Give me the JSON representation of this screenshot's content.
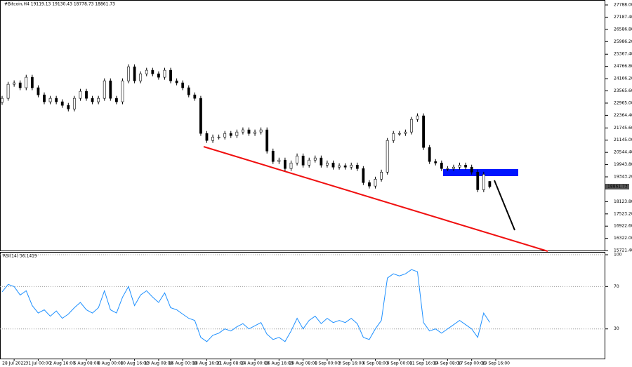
{
  "chart_data": [
    {
      "type": "candlestick",
      "title": "#Bitcoin,H4  19119.13 19130.43 18778.73 18861.73",
      "current_price_label": "18861.73",
      "series": [
        {
          "name": "#Bitcoin,H4",
          "up_color": "#ffffff",
          "down_color": "#000000",
          "values": [
            [
              23000,
              23320,
              22880,
              23200
            ],
            [
              23200,
              24010,
              23080,
              23890
            ],
            [
              23890,
              24080,
              23770,
              23960
            ],
            [
              23960,
              24080,
              23600,
              23720
            ],
            [
              23720,
              24355,
              23600,
              24235
            ],
            [
              24235,
              24355,
              23600,
              23720
            ],
            [
              23720,
              23840,
              23250,
              23370
            ],
            [
              23370,
              23490,
              22910,
              23030
            ],
            [
              23030,
              23320,
              22910,
              23200
            ],
            [
              23200,
              23320,
              22910,
              23030
            ],
            [
              23030,
              23150,
              22735,
              22855
            ],
            [
              22855,
              22975,
              22560,
              22680
            ],
            [
              22680,
              23320,
              22560,
              23200
            ],
            [
              23200,
              23665,
              23080,
              23545
            ],
            [
              23545,
              23665,
              23080,
              23200
            ],
            [
              23200,
              23320,
              22910,
              23030
            ],
            [
              23030,
              23320,
              22910,
              23200
            ],
            [
              23200,
              24180,
              23080,
              24060
            ],
            [
              24060,
              24180,
              23080,
              23200
            ],
            [
              23200,
              23320,
              22910,
              23030
            ],
            [
              23030,
              24180,
              22910,
              24060
            ],
            [
              24060,
              24870,
              23940,
              24750
            ],
            [
              24750,
              24870,
              23940,
              24060
            ],
            [
              24060,
              24525,
              23940,
              24405
            ],
            [
              24405,
              24700,
              24285,
              24580
            ],
            [
              24580,
              24700,
              24285,
              24405
            ],
            [
              24405,
              24525,
              24115,
              24235
            ],
            [
              24235,
              24700,
              24115,
              24580
            ],
            [
              24580,
              24700,
              23940,
              24060
            ],
            [
              24060,
              24180,
              23840,
              23960
            ],
            [
              23960,
              24080,
              23600,
              23720
            ],
            [
              23720,
              23840,
              23250,
              23370
            ],
            [
              23370,
              23490,
              23080,
              23200
            ],
            [
              23200,
              23320,
              21355,
              21475
            ],
            [
              21475,
              21595,
              21010,
              21130
            ],
            [
              21130,
              21420,
              21010,
              21300
            ],
            [
              21300,
              21420,
              21180,
              21300
            ],
            [
              21300,
              21595,
              21180,
              21475
            ],
            [
              21475,
              21595,
              21250,
              21370
            ],
            [
              21370,
              21665,
              21250,
              21545
            ],
            [
              21545,
              21770,
              21425,
              21650
            ],
            [
              21650,
              21770,
              21355,
              21475
            ],
            [
              21475,
              21665,
              21355,
              21545
            ],
            [
              21545,
              21770,
              21425,
              21650
            ],
            [
              21650,
              21770,
              20490,
              20610
            ],
            [
              20610,
              20730,
              19975,
              20095
            ],
            [
              20095,
              20285,
              19975,
              20165
            ],
            [
              20165,
              20285,
              19630,
              19750
            ],
            [
              19750,
              20145,
              19630,
              20025
            ],
            [
              20025,
              20490,
              19905,
              20370
            ],
            [
              20370,
              20490,
              19800,
              19920
            ],
            [
              19920,
              20285,
              19800,
              20165
            ],
            [
              20165,
              20390,
              20045,
              20270
            ],
            [
              20270,
              20390,
              19800,
              19920
            ],
            [
              19920,
              20145,
              19800,
              20025
            ],
            [
              20025,
              20145,
              19700,
              19820
            ],
            [
              19820,
              20010,
              19700,
              19890
            ],
            [
              19890,
              20010,
              19700,
              19820
            ],
            [
              19820,
              20040,
              19700,
              19920
            ],
            [
              19920,
              20040,
              19630,
              19750
            ],
            [
              19750,
              19870,
              18940,
              19060
            ],
            [
              19060,
              19180,
              18770,
              18890
            ],
            [
              18890,
              19350,
              18770,
              19230
            ],
            [
              19230,
              19695,
              19110,
              19575
            ],
            [
              19575,
              21250,
              19455,
              21130
            ],
            [
              21130,
              21595,
              21010,
              21475
            ],
            [
              21475,
              21595,
              21355,
              21475
            ],
            [
              21475,
              21665,
              21355,
              21545
            ],
            [
              21545,
              22285,
              21425,
              22165
            ],
            [
              22165,
              22460,
              22045,
              22340
            ],
            [
              22340,
              22460,
              20665,
              20785
            ],
            [
              20785,
              20905,
              19975,
              20095
            ],
            [
              20095,
              20215,
              19905,
              20025
            ],
            [
              20025,
              20145,
              19630,
              19750
            ],
            [
              19750,
              19870,
              19630,
              19750
            ],
            [
              19750,
              19940,
              19630,
              19820
            ],
            [
              19820,
              20040,
              19700,
              19920
            ],
            [
              19920,
              20040,
              19700,
              19820
            ],
            [
              19820,
              19940,
              19455,
              19575
            ],
            [
              19575,
              19695,
              18590,
              18710
            ],
            [
              18710,
              19590,
              18590,
              19470
            ],
            [
              19119.13,
              19130.43,
              18778.73,
              18861.73
            ]
          ]
        }
      ],
      "xlim": [
        -0.35,
        100.2
      ],
      "ylim": [
        15690,
        28030
      ],
      "yticks": [
        {
          "value": 27788,
          "label": "27788.00"
        },
        {
          "value": 27187.4,
          "label": "27187.40"
        },
        {
          "value": 26586.8,
          "label": "26586.80"
        },
        {
          "value": 25986.2,
          "label": "25986.20"
        },
        {
          "value": 25367.4,
          "label": "25367.40"
        },
        {
          "value": 24766.8,
          "label": "24766.80"
        },
        {
          "value": 24166.2,
          "label": "24166.20"
        },
        {
          "value": 23565.6,
          "label": "23565.60"
        },
        {
          "value": 22965,
          "label": "22965.00"
        },
        {
          "value": 22364.4,
          "label": "22364.40"
        },
        {
          "value": 21745.6,
          "label": "21745.60"
        },
        {
          "value": 21145,
          "label": "21145.00"
        },
        {
          "value": 20544.4,
          "label": "20544.40"
        },
        {
          "value": 19943.8,
          "label": "19943.80"
        },
        {
          "value": 19343.2,
          "label": "19343.20"
        },
        {
          "value": 18123.8,
          "label": "18123.80"
        },
        {
          "value": 17523.2,
          "label": "17523.20"
        },
        {
          "value": 16922.6,
          "label": "16922.60"
        },
        {
          "value": 16322,
          "label": "16322.00"
        },
        {
          "value": 15721.4,
          "label": "15721.40"
        }
      ],
      "xticks": [
        {
          "value": 2,
          "label": "28 Jul 2022"
        },
        {
          "value": 6,
          "label": "31 Jul 00:00"
        },
        {
          "value": 10,
          "label": "2 Aug 16:00"
        },
        {
          "value": 14,
          "label": "5 Aug 08:00"
        },
        {
          "value": 18,
          "label": "8 Aug 00:00"
        },
        {
          "value": 22,
          "label": "10 Aug 16:00"
        },
        {
          "value": 26,
          "label": "13 Aug 08:00"
        },
        {
          "value": 30,
          "label": "16 Aug 00:00"
        },
        {
          "value": 34,
          "label": "18 Aug 16:00"
        },
        {
          "value": 38,
          "label": "21 Aug 08:00"
        },
        {
          "value": 42,
          "label": "24 Aug 00:00"
        },
        {
          "value": 46,
          "label": "26 Aug 16:00"
        },
        {
          "value": 50,
          "label": "29 Aug 08:00"
        },
        {
          "value": 54,
          "label": "1 Sep 00:00"
        },
        {
          "value": 58,
          "label": "3 Sep 16:00"
        },
        {
          "value": 62,
          "label": "6 Sep 08:00"
        },
        {
          "value": 66,
          "label": "9 Sep 00:00"
        },
        {
          "value": 70,
          "label": "11 Sep 16:00"
        },
        {
          "value": 74,
          "label": "14 Sep 08:00"
        },
        {
          "value": 78,
          "label": "17 Sep 00:00"
        },
        {
          "value": 82,
          "label": "19 Sep 16:00"
        }
      ]
    },
    {
      "type": "line",
      "title": "RSI(14) 36.1419",
      "series": [
        {
          "name": "RSI(14)",
          "color": "#1e90ff",
          "values": [
            65,
            72,
            70,
            62,
            66,
            52,
            45,
            48,
            42,
            47,
            40,
            44,
            50,
            55,
            48,
            45,
            50,
            66,
            48,
            45,
            60,
            70,
            52,
            62,
            66,
            60,
            55,
            64,
            50,
            48,
            44,
            40,
            38,
            22,
            18,
            24,
            26,
            30,
            28,
            32,
            35,
            30,
            33,
            36,
            25,
            20,
            22,
            18,
            28,
            40,
            30,
            38,
            42,
            35,
            40,
            36,
            38,
            36,
            40,
            35,
            22,
            20,
            30,
            38,
            78,
            82,
            80,
            82,
            86,
            84,
            36,
            28,
            30,
            26,
            30,
            34,
            38,
            34,
            30,
            22,
            45,
            36.1419
          ]
        }
      ],
      "ylim": [
        2,
        102
      ],
      "yticks": [
        100,
        70,
        30
      ]
    }
  ]
}
